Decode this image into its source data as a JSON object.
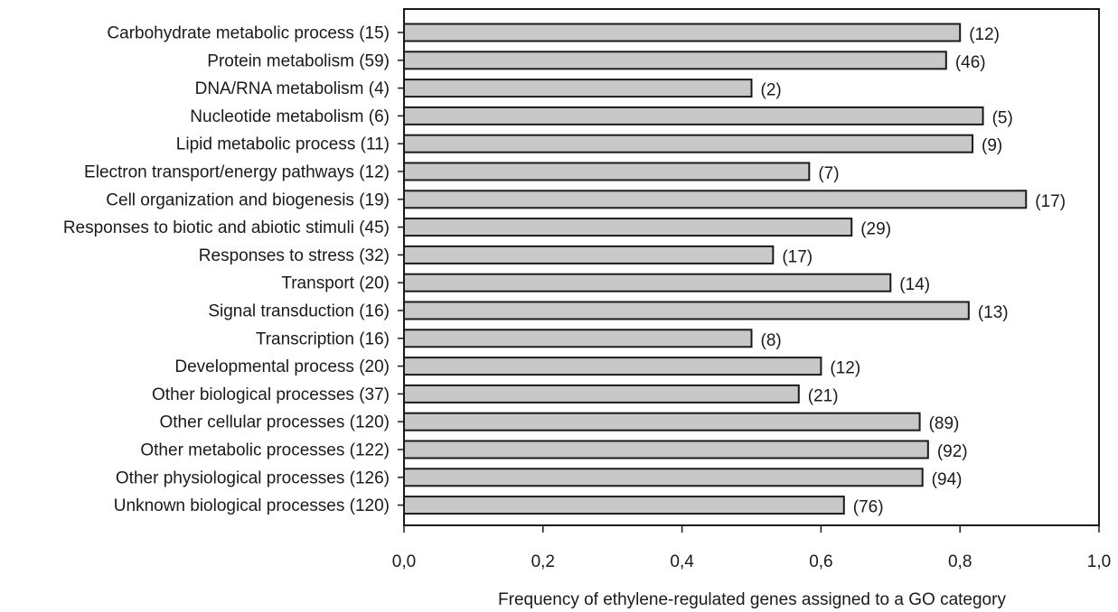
{
  "chart_data": {
    "type": "bar",
    "orientation": "horizontal",
    "xlabel": "Frequency of ethylene-regulated genes assigned to a GO category",
    "ylabel": "",
    "xlim": [
      0,
      1.0
    ],
    "xticks": [
      "0,0",
      "0,2",
      "0,4",
      "0,6",
      "0,8",
      "1,0"
    ],
    "bar_color": "#c8c8c8",
    "categories": [
      "Carbohydrate metabolic process (15)",
      "Protein metabolism (59)",
      "DNA/RNA metabolism (4)",
      "Nucleotide metabolism (6)",
      "Lipid metabolic process (11)",
      "Electron transport/energy pathways (12)",
      "Cell organization and biogenesis (19)",
      "Responses to biotic and abiotic stimuli (45)",
      "Responses to stress (32)",
      "Transport (20)",
      "Signal transduction (16)",
      "Transcription (16)",
      "Developmental process (20)",
      "Other biological processes (37)",
      "Other cellular processes (120)",
      "Other metabolic processes (122)",
      "Other physiological processes (126)",
      "Unknown biological processes (120)"
    ],
    "values": [
      0.8,
      0.78,
      0.5,
      0.833,
      0.818,
      0.583,
      0.895,
      0.644,
      0.531,
      0.7,
      0.8125,
      0.5,
      0.6,
      0.568,
      0.742,
      0.754,
      0.746,
      0.633
    ],
    "data_labels": [
      "(12)",
      "(46)",
      "(2)",
      "(5)",
      "(9)",
      "(7)",
      "(17)",
      "(29)",
      "(17)",
      "(14)",
      "(13)",
      "(8)",
      "(12)",
      "(21)",
      "(89)",
      "(92)",
      "(94)",
      "(76)"
    ]
  }
}
